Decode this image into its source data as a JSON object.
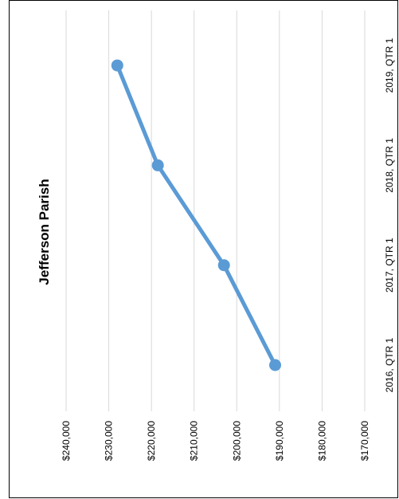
{
  "chart_data": {
    "type": "line",
    "title": "Jefferson Parish",
    "xlabel": "",
    "ylabel": "",
    "categories": [
      "2016, QTR 1",
      "2017, QTR 1",
      "2018, QTR 1",
      "2019, QTR 1"
    ],
    "series": [
      {
        "values": [
          191000,
          203000,
          218500,
          228000
        ]
      }
    ],
    "y_ticks": [
      "$170,000",
      "$180,000",
      "$190,000",
      "$200,000",
      "$210,000",
      "$220,000",
      "$230,000",
      "$240,000"
    ],
    "ylim": [
      170000,
      240000
    ],
    "grid": true,
    "legend": "none",
    "orientation": "rotated-90-clockwise",
    "colors": {
      "line": "#5B9BD5",
      "grid": "#D9D9D9",
      "text": "#000000"
    }
  }
}
